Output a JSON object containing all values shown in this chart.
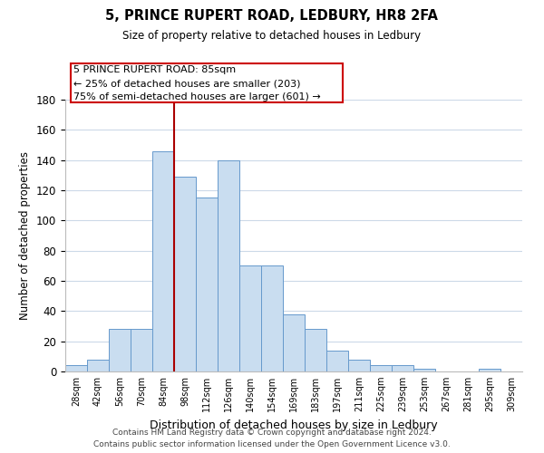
{
  "title": "5, PRINCE RUPERT ROAD, LEDBURY, HR8 2FA",
  "subtitle": "Size of property relative to detached houses in Ledbury",
  "xlabel": "Distribution of detached houses by size in Ledbury",
  "ylabel": "Number of detached properties",
  "bar_labels": [
    "28sqm",
    "42sqm",
    "56sqm",
    "70sqm",
    "84sqm",
    "98sqm",
    "112sqm",
    "126sqm",
    "140sqm",
    "154sqm",
    "169sqm",
    "183sqm",
    "197sqm",
    "211sqm",
    "225sqm",
    "239sqm",
    "253sqm",
    "267sqm",
    "281sqm",
    "295sqm",
    "309sqm"
  ],
  "bar_values": [
    4,
    8,
    28,
    28,
    146,
    129,
    115,
    140,
    70,
    70,
    38,
    28,
    14,
    8,
    4,
    4,
    2,
    0,
    0,
    2,
    0
  ],
  "bar_color": "#c9ddf0",
  "bar_edgecolor": "#6699cc",
  "annotation_title": "5 PRINCE RUPERT ROAD: 85sqm",
  "annotation_line1": "← 25% of detached houses are smaller (203)",
  "annotation_line2": "75% of semi-detached houses are larger (601) →",
  "annotation_box_edgecolor": "#cc0000",
  "vline_color": "#aa0000",
  "vline_x": 4.5,
  "ylim": [
    0,
    180
  ],
  "yticks": [
    0,
    20,
    40,
    60,
    80,
    100,
    120,
    140,
    160,
    180
  ],
  "footer_line1": "Contains HM Land Registry data © Crown copyright and database right 2024.",
  "footer_line2": "Contains public sector information licensed under the Open Government Licence v3.0.",
  "bg_color": "#ffffff",
  "grid_color": "#ccd9e8"
}
